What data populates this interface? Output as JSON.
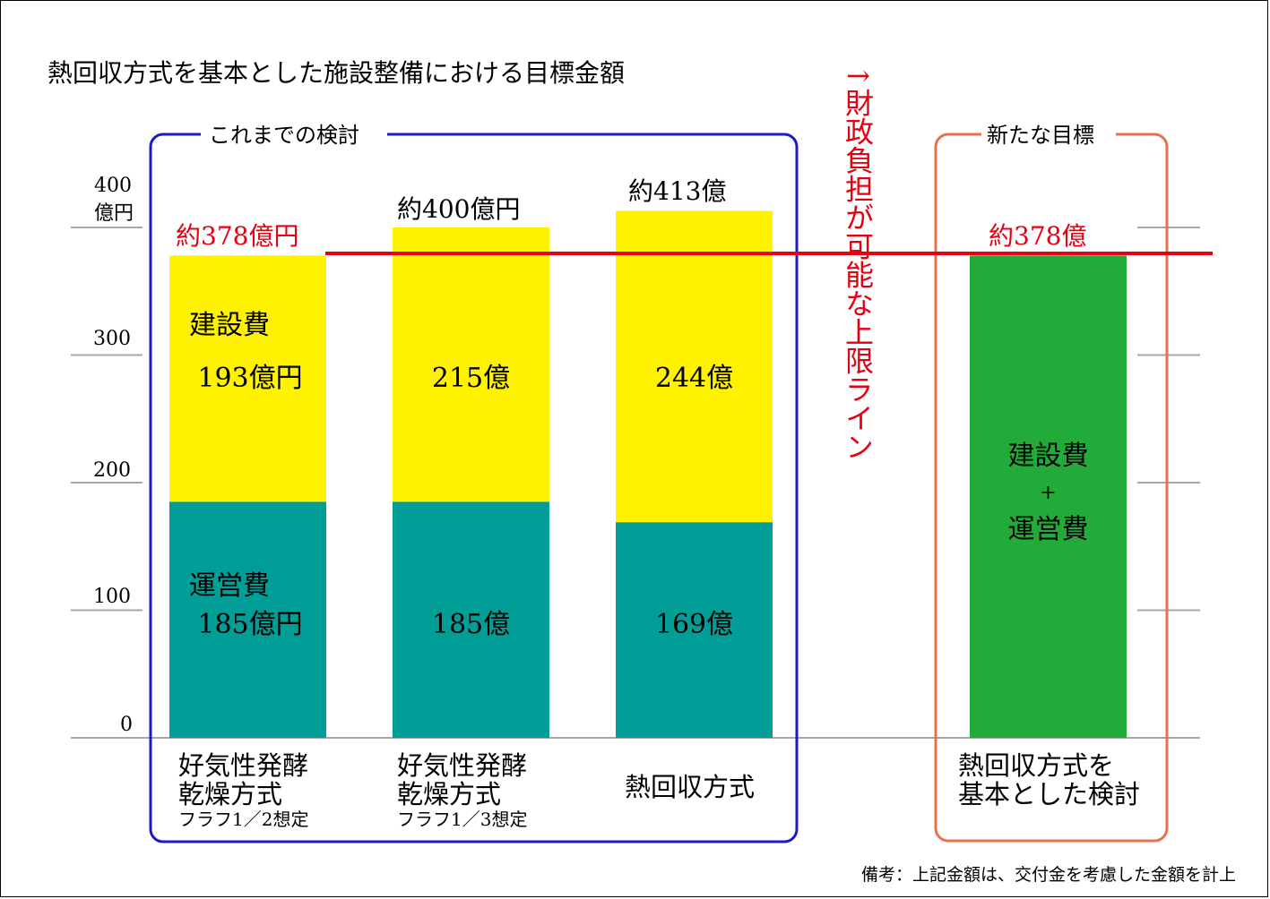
{
  "chart_data": {
    "type": "bar",
    "stacked": true,
    "title": "熱回収方式を基本とした施設整備における目標金額",
    "ylim": [
      0,
      400
    ],
    "y_ticks": [
      "0",
      "100",
      "200",
      "300",
      "400"
    ],
    "y_top_unit": "億円",
    "grid": false,
    "groups": [
      {
        "label": "これまでの検討",
        "color": "#1a1acc"
      },
      {
        "label": "新たな目標",
        "color": "#e8704a"
      }
    ],
    "categories": [
      {
        "line1": "好気性発酵",
        "line2": "乾燥方式",
        "line3": "フラフ1／2想定"
      },
      {
        "line1": "好気性発酵",
        "line2": "乾燥方式",
        "line3": "フラフ1／3想定"
      },
      {
        "line1": "熱回収方式",
        "line2": "",
        "line3": ""
      },
      {
        "line1": "熱回収方式を",
        "line2": "基本とした検討",
        "line3": ""
      }
    ],
    "series": [
      {
        "name": "運営費",
        "color": "#009e96",
        "values": [
          185,
          185,
          169,
          null
        ],
        "labels": [
          "185億円",
          "185億",
          "169億",
          ""
        ]
      },
      {
        "name": "建設費",
        "color": "#fff200",
        "values": [
          193,
          215,
          244,
          null
        ],
        "labels": [
          "193億円",
          "215億",
          "244億",
          ""
        ]
      },
      {
        "name": "建設費+運営費",
        "color": "#22ab38",
        "values": [
          null,
          null,
          null,
          378
        ],
        "labels": [
          "",
          "",
          "",
          ""
        ]
      }
    ],
    "segment_titles": {
      "construction": "建設費",
      "operation": "運営費",
      "combined_line1": "建設費",
      "combined_plus": "+",
      "combined_line2": "運営費"
    },
    "totals": [
      "約378億円",
      "約400億円",
      "約413億",
      "約378億"
    ],
    "reference_line": {
      "value": 378,
      "color": "#e60012",
      "label": "↑財政負担が可能な上限ライン"
    },
    "note": "備考：上記金額は、交付金を考慮した金額を計上"
  }
}
